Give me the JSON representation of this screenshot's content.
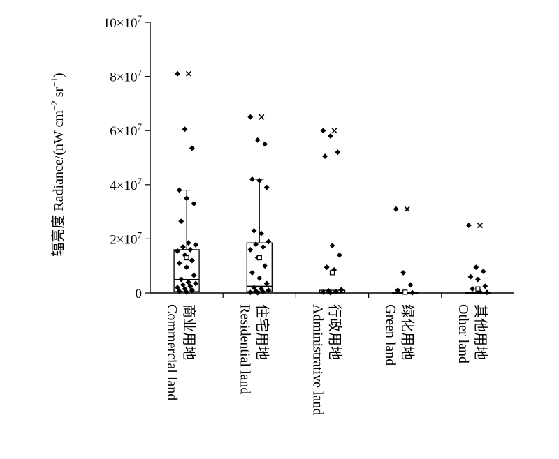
{
  "chart_data": {
    "type": "box",
    "ylabel": "辐亮度 Radiance/(nW cm",
    "ylabel_sup1": "−2",
    "ylabel_mid": " sr",
    "ylabel_sup2": "−1",
    "ylabel_end": ")",
    "ylim": [
      0,
      100000000
    ],
    "y_ticks": [
      {
        "value": 0,
        "label": "0"
      },
      {
        "value": 20000000,
        "label": "2×10",
        "exp": "7"
      },
      {
        "value": 40000000,
        "label": "4×10",
        "exp": "7"
      },
      {
        "value": 60000000,
        "label": "6×10",
        "exp": "7"
      },
      {
        "value": 80000000,
        "label": "8×10",
        "exp": "7"
      },
      {
        "value": 100000000,
        "label": "10×10",
        "exp": "7"
      }
    ],
    "categories": [
      {
        "zh": "商业用地",
        "en": "Commercial land"
      },
      {
        "zh": "住宅用地",
        "en": "Residential land"
      },
      {
        "zh": "行政用地",
        "en": "Administrative land"
      },
      {
        "zh": "绿化用地",
        "en": "Green land"
      },
      {
        "zh": "其他用地",
        "en": "Other land"
      }
    ],
    "boxes": [
      {
        "q1": 500000,
        "median": 5000000,
        "q3": 16000000,
        "whisker_low": 0,
        "whisker_high": 38000000,
        "mean": 13000000,
        "max": 81000000,
        "points": [
          81000000,
          60500000,
          53500000,
          38000000,
          35000000,
          33000000,
          26500000,
          18500000,
          17800000,
          17000000,
          16000000,
          15500000,
          14000000,
          12000000,
          11000000,
          9500000,
          6500000,
          5000000,
          4000000,
          3500000,
          3000000,
          2500000,
          2000000,
          1500000,
          1000000,
          600000,
          300000
        ]
      },
      {
        "q1": 500000,
        "median": 2500000,
        "q3": 18500000,
        "whisker_low": 0,
        "whisker_high": 42000000,
        "mean": 13000000,
        "max": 65000000,
        "points": [
          65000000,
          56500000,
          55000000,
          42000000,
          41500000,
          39000000,
          23000000,
          22000000,
          19000000,
          18000000,
          17000000,
          16000000,
          13000000,
          10000000,
          7500000,
          5500000,
          3500000,
          2000000,
          1500000,
          1000000,
          700000,
          400000,
          200000,
          100000
        ]
      },
      {
        "q1": 0,
        "median": 300000,
        "q3": 1000000,
        "whisker_low": 0,
        "whisker_high": 1000000,
        "mean": 7500000,
        "max": 60000000,
        "points": [
          60000000,
          58000000,
          52000000,
          50500000,
          17500000,
          14000000,
          9500000,
          8500000,
          1200000,
          800000,
          500000,
          300000,
          100000
        ]
      },
      {
        "q1": 0,
        "median": 100000,
        "q3": 200000,
        "whisker_low": 0,
        "whisker_high": 200000,
        "mean": 300000,
        "max": 31000000,
        "points": [
          31000000,
          7500000,
          3000000,
          1000000,
          300000,
          100000
        ]
      },
      {
        "q1": 0,
        "median": 100000,
        "q3": 300000,
        "whisker_low": 0,
        "whisker_high": 300000,
        "mean": 1500000,
        "max": 25000000,
        "points": [
          25000000,
          9500000,
          8000000,
          6000000,
          5000000,
          2500000,
          1500000,
          500000,
          200000
        ]
      }
    ]
  }
}
